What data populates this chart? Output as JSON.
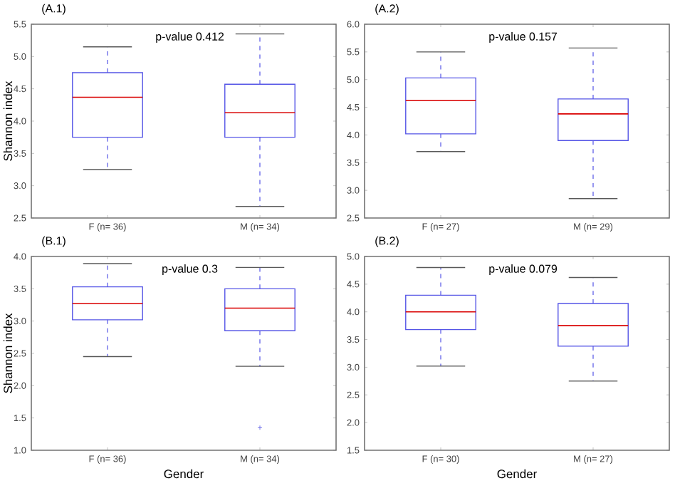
{
  "chart_data": [
    {
      "type": "box",
      "title": "(A.1)",
      "ylabel": "Shannon index",
      "categories": [
        "F (n= 36)",
        "M (n= 34)"
      ],
      "color": "#5555e6",
      "ylim": [
        2.5,
        5.5
      ],
      "annotations": [
        "p-value 0.412"
      ],
      "yticks": [
        {
          "value": 2.5,
          "label": "2.5"
        },
        {
          "value": 3,
          "label": "3.0"
        },
        {
          "value": 3.5,
          "label": "3.5"
        },
        {
          "value": 4,
          "label": "4.0"
        },
        {
          "value": 4.5,
          "label": "4.5"
        },
        {
          "value": 5,
          "label": "5.0"
        },
        {
          "value": 5.5,
          "label": "5.5"
        }
      ],
      "boxes": [
        {
          "low": 3.25,
          "q1": 3.75,
          "median": 4.37,
          "q3": 4.75,
          "high": 5.15
        },
        {
          "low": 2.68,
          "q1": 3.75,
          "median": 4.13,
          "q3": 4.57,
          "high": 5.35
        }
      ]
    },
    {
      "type": "box",
      "title": "(A.2)",
      "categories": [
        "F (n= 27)",
        "M (n= 29)"
      ],
      "color": "#5555e6",
      "ylim": [
        2.5,
        6.0
      ],
      "annotations": [
        "p-value 0.157"
      ],
      "yticks": [
        {
          "value": 2.5,
          "label": "2.5"
        },
        {
          "value": 3,
          "label": "3.0"
        },
        {
          "value": 3.5,
          "label": "3.5"
        },
        {
          "value": 4,
          "label": "4.0"
        },
        {
          "value": 4.5,
          "label": "4.5"
        },
        {
          "value": 5,
          "label": "5.0"
        },
        {
          "value": 5.5,
          "label": "5.5"
        },
        {
          "value": 6,
          "label": "6.0"
        }
      ],
      "boxes": [
        {
          "low": 3.7,
          "q1": 4.02,
          "median": 4.62,
          "q3": 5.03,
          "high": 5.5
        },
        {
          "low": 2.85,
          "q1": 3.9,
          "median": 4.38,
          "q3": 4.65,
          "high": 5.57
        }
      ]
    },
    {
      "type": "box",
      "title": "(B.1)",
      "ylabel": "Shannon index",
      "xlabel": "Gender",
      "categories": [
        "F (n= 36)",
        "M (n= 34)"
      ],
      "color": "#5555e6",
      "ylim": [
        1.0,
        4.0
      ],
      "annotations": [
        "p-value 0.3"
      ],
      "yticks": [
        {
          "value": 1,
          "label": "1.0"
        },
        {
          "value": 1.5,
          "label": "1.5"
        },
        {
          "value": 2,
          "label": "2.0"
        },
        {
          "value": 2.5,
          "label": "2.5"
        },
        {
          "value": 3,
          "label": "3.0"
        },
        {
          "value": 3.5,
          "label": "3.5"
        },
        {
          "value": 4,
          "label": "4.0"
        }
      ],
      "boxes": [
        {
          "low": 2.45,
          "q1": 3.02,
          "median": 3.27,
          "q3": 3.53,
          "high": 3.89
        },
        {
          "low": 2.3,
          "q1": 2.85,
          "median": 3.2,
          "q3": 3.5,
          "high": 3.83,
          "outliers": [
            1.35
          ]
        }
      ]
    },
    {
      "type": "box",
      "title": "(B.2)",
      "xlabel": "Gender",
      "categories": [
        "F (n= 30)",
        "M (n= 27)"
      ],
      "color": "#5555e6",
      "ylim": [
        1.5,
        5.0
      ],
      "annotations": [
        "p-value 0.079"
      ],
      "yticks": [
        {
          "value": 1.5,
          "label": "1.5"
        },
        {
          "value": 2,
          "label": "2.0"
        },
        {
          "value": 2.5,
          "label": "2.5"
        },
        {
          "value": 3,
          "label": "3.0"
        },
        {
          "value": 3.5,
          "label": "3.5"
        },
        {
          "value": 4,
          "label": "4.0"
        },
        {
          "value": 4.5,
          "label": "4.5"
        },
        {
          "value": 5,
          "label": "5.0"
        }
      ],
      "boxes": [
        {
          "low": 3.02,
          "q1": 3.68,
          "median": 4.0,
          "q3": 4.3,
          "high": 4.8
        },
        {
          "low": 2.75,
          "q1": 3.38,
          "median": 3.75,
          "q3": 4.15,
          "high": 4.62
        }
      ]
    }
  ]
}
